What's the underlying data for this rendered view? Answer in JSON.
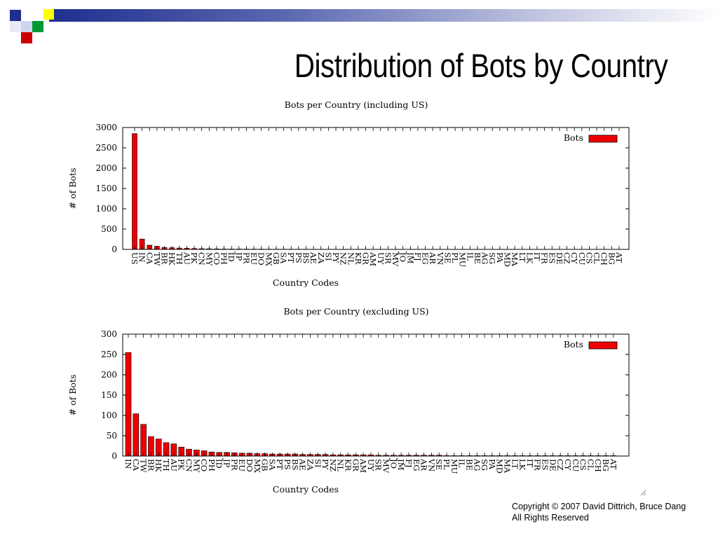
{
  "slide": {
    "title": "Distribution of Bots by Country",
    "copyright": "Copyright © 2007 David Dittrich, Bruce Dang",
    "rights": "All Rights Reserved",
    "colors": {
      "bar_fill": "#ee0000",
      "deco_blue": "#1f2f8e",
      "deco_green": "#009933",
      "deco_yellow": "#ffff00",
      "deco_red": "#cc0000"
    }
  },
  "chart_data": [
    {
      "type": "bar",
      "title": "Bots per Country (including US)",
      "xlabel": "Country Codes",
      "ylabel": "# of Bots",
      "ylim": [
        0,
        3000
      ],
      "yticks": [
        0,
        500,
        1000,
        1500,
        2000,
        2500,
        3000
      ],
      "legend": "top-right",
      "grid": false,
      "categories": [
        "US",
        "IN",
        "CA",
        "TW",
        "BR",
        "HK",
        "TH",
        "AU",
        "PK",
        "CN",
        "MY",
        "CO",
        "PH",
        "ID",
        "JP",
        "PR",
        "EU",
        "DO",
        "MX",
        "GB",
        "SA",
        "PT",
        "PS",
        "BS",
        "AE",
        "ZA",
        "SI",
        "PY",
        "NZ",
        "NL",
        "KR",
        "GR",
        "AM",
        "UY",
        "SR",
        "MV",
        "JO",
        "JM",
        "FJ",
        "EG",
        "AR",
        "VN",
        "SE",
        "PL",
        "MU",
        "IL",
        "BE",
        "AG",
        "SG",
        "PA",
        "MD",
        "MA",
        "LT",
        "LK",
        "IT",
        "FR",
        "ES",
        "DE",
        "CZ",
        "CY",
        "CU",
        "CS",
        "CL",
        "CH",
        "BG",
        "AT"
      ],
      "series": [
        {
          "name": "Bots",
          "values": [
            2850,
            255,
            104,
            78,
            48,
            42,
            33,
            30,
            22,
            17,
            15,
            13,
            10,
            9,
            9,
            8,
            7,
            7,
            6,
            6,
            5,
            5,
            5,
            5,
            4,
            4,
            4,
            4,
            3,
            3,
            3,
            3,
            3,
            3,
            2,
            2,
            2,
            2,
            2,
            2,
            2,
            2,
            2,
            1,
            1,
            1,
            1,
            1,
            1,
            1,
            1,
            1,
            1,
            1,
            1,
            1,
            1,
            1,
            1,
            1,
            1,
            1,
            1,
            1,
            1,
            1
          ]
        }
      ]
    },
    {
      "type": "bar",
      "title": "Bots per Country (excluding US)",
      "xlabel": "Country Codes",
      "ylabel": "# of Bots",
      "ylim": [
        0,
        300
      ],
      "yticks": [
        0,
        50,
        100,
        150,
        200,
        250,
        300
      ],
      "legend": "top-right",
      "grid": false,
      "categories": [
        "IN",
        "CA",
        "TW",
        "BR",
        "HK",
        "TH",
        "AU",
        "PK",
        "CN",
        "MY",
        "CO",
        "PH",
        "ID",
        "JP",
        "PR",
        "EU",
        "DO",
        "MX",
        "GB",
        "SA",
        "PT",
        "PS",
        "BS",
        "AE",
        "ZA",
        "SI",
        "PY",
        "NZ",
        "NL",
        "KR",
        "GR",
        "AM",
        "UY",
        "SR",
        "MV",
        "JO",
        "JM",
        "FJ",
        "EG",
        "AR",
        "VN",
        "SE",
        "PL",
        "MU",
        "IL",
        "BE",
        "AG",
        "SG",
        "PA",
        "MD",
        "MA",
        "LT",
        "LK",
        "IT",
        "FR",
        "ES",
        "DE",
        "CZ",
        "CY",
        "CU",
        "CS",
        "CL",
        "CH",
        "BG",
        "AT"
      ],
      "series": [
        {
          "name": "Bots",
          "values": [
            255,
            104,
            78,
            48,
            42,
            33,
            30,
            22,
            17,
            15,
            13,
            10,
            9,
            9,
            8,
            7,
            7,
            6,
            6,
            5,
            5,
            5,
            5,
            4,
            4,
            4,
            4,
            3,
            3,
            3,
            3,
            3,
            3,
            2,
            2,
            2,
            2,
            2,
            2,
            2,
            2,
            2,
            1,
            1,
            1,
            1,
            1,
            1,
            1,
            1,
            1,
            1,
            1,
            1,
            1,
            1,
            1,
            1,
            1,
            1,
            1,
            1,
            1,
            1,
            1
          ]
        }
      ]
    }
  ]
}
